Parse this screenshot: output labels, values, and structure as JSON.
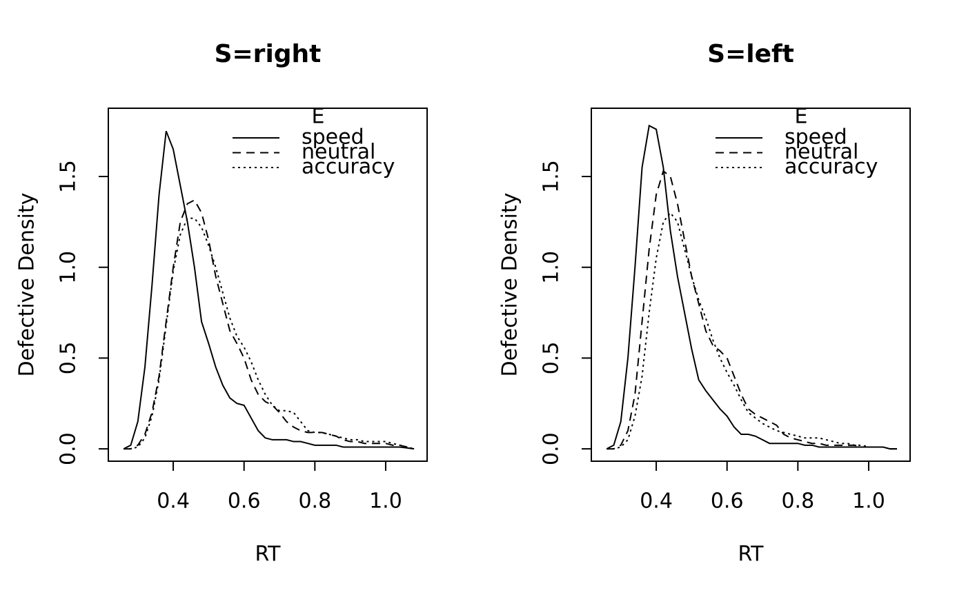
{
  "chart_data": [
    {
      "type": "line",
      "title": "S=right",
      "xlabel": "RT",
      "ylabel": "Defective Density",
      "legend_title": "E",
      "legend": "top-right",
      "x": [
        0.26,
        0.28,
        0.3,
        0.32,
        0.34,
        0.36,
        0.38,
        0.4,
        0.42,
        0.44,
        0.46,
        0.48,
        0.5,
        0.52,
        0.54,
        0.56,
        0.58,
        0.6,
        0.62,
        0.64,
        0.66,
        0.68,
        0.7,
        0.72,
        0.74,
        0.76,
        0.78,
        0.8,
        0.82,
        0.84,
        0.86,
        0.88,
        0.9,
        0.92,
        0.94,
        0.96,
        0.98,
        1.0,
        1.02,
        1.04,
        1.06,
        1.08
      ],
      "series": [
        {
          "name": "speed",
          "color": "#000000",
          "dash": "solid",
          "values": [
            0,
            0.02,
            0.15,
            0.45,
            0.9,
            1.4,
            1.75,
            1.65,
            1.45,
            1.25,
            1.0,
            0.7,
            0.58,
            0.45,
            0.35,
            0.28,
            0.25,
            0.24,
            0.17,
            0.1,
            0.06,
            0.05,
            0.05,
            0.05,
            0.04,
            0.04,
            0.03,
            0.02,
            0.02,
            0.02,
            0.02,
            0.01,
            0.01,
            0.01,
            0.01,
            0.01,
            0.01,
            0.01,
            0.01,
            0.01,
            0.005,
            0
          ]
        },
        {
          "name": "neutral",
          "color": "#000000",
          "dash": "dashed",
          "values": [
            0,
            0,
            0.02,
            0.08,
            0.2,
            0.4,
            0.7,
            1.0,
            1.25,
            1.35,
            1.37,
            1.3,
            1.15,
            0.95,
            0.8,
            0.65,
            0.58,
            0.5,
            0.38,
            0.3,
            0.26,
            0.24,
            0.2,
            0.15,
            0.12,
            0.1,
            0.09,
            0.09,
            0.09,
            0.08,
            0.07,
            0.05,
            0.04,
            0.04,
            0.03,
            0.03,
            0.03,
            0.03,
            0.02,
            0.02,
            0.01,
            0
          ]
        },
        {
          "name": "accuracy",
          "color": "#000000",
          "dash": "dotted",
          "values": [
            0,
            0,
            0.01,
            0.06,
            0.18,
            0.38,
            0.68,
            0.98,
            1.18,
            1.27,
            1.27,
            1.22,
            1.12,
            1.0,
            0.86,
            0.72,
            0.62,
            0.56,
            0.48,
            0.38,
            0.3,
            0.24,
            0.21,
            0.21,
            0.2,
            0.15,
            0.1,
            0.09,
            0.09,
            0.08,
            0.07,
            0.06,
            0.05,
            0.05,
            0.04,
            0.04,
            0.04,
            0.04,
            0.03,
            0.02,
            0.01,
            0
          ]
        }
      ],
      "xlim": [
        0.2167,
        1.117
      ],
      "ylim": [
        -0.068,
        1.876
      ],
      "xticks": [
        0.4,
        0.6,
        0.8,
        {
          "value": 1,
          "label": "1.0"
        }
      ],
      "yticks": [
        {
          "value": 0,
          "label": "0.0"
        },
        0.5,
        {
          "value": 1,
          "label": "1.0"
        },
        1.5
      ]
    },
    {
      "type": "line",
      "title": "S=left",
      "xlabel": "RT",
      "ylabel": "Defective Density",
      "legend_title": "E",
      "legend": "top-right",
      "x": [
        0.26,
        0.28,
        0.3,
        0.32,
        0.34,
        0.36,
        0.38,
        0.4,
        0.42,
        0.44,
        0.46,
        0.48,
        0.5,
        0.52,
        0.54,
        0.56,
        0.58,
        0.6,
        0.62,
        0.64,
        0.66,
        0.68,
        0.7,
        0.72,
        0.74,
        0.76,
        0.78,
        0.8,
        0.82,
        0.84,
        0.86,
        0.88,
        0.9,
        0.92,
        0.94,
        0.96,
        0.98,
        1.0,
        1.02,
        1.04,
        1.06,
        1.08
      ],
      "series": [
        {
          "name": "speed",
          "color": "#000000",
          "dash": "solid",
          "values": [
            0,
            0.02,
            0.15,
            0.5,
            1.0,
            1.55,
            1.78,
            1.76,
            1.55,
            1.2,
            0.95,
            0.75,
            0.55,
            0.38,
            0.32,
            0.27,
            0.22,
            0.18,
            0.12,
            0.08,
            0.08,
            0.07,
            0.05,
            0.03,
            0.03,
            0.03,
            0.03,
            0.03,
            0.02,
            0.02,
            0.01,
            0.01,
            0.01,
            0.01,
            0.01,
            0.01,
            0.01,
            0.01,
            0.01,
            0.01,
            0,
            0
          ]
        },
        {
          "name": "neutral",
          "color": "#000000",
          "dash": "dashed",
          "values": [
            0,
            0,
            0.02,
            0.1,
            0.3,
            0.7,
            1.1,
            1.4,
            1.53,
            1.5,
            1.35,
            1.15,
            0.95,
            0.8,
            0.65,
            0.57,
            0.54,
            0.5,
            0.4,
            0.3,
            0.22,
            0.19,
            0.17,
            0.15,
            0.13,
            0.08,
            0.06,
            0.05,
            0.04,
            0.03,
            0.03,
            0.02,
            0.02,
            0.02,
            0.02,
            0.02,
            0.01,
            0.01,
            0.01,
            0.01,
            0,
            0
          ]
        },
        {
          "name": "accuracy",
          "color": "#000000",
          "dash": "dotted",
          "values": [
            0,
            0,
            0.01,
            0.05,
            0.18,
            0.4,
            0.75,
            1.05,
            1.25,
            1.3,
            1.25,
            1.1,
            0.95,
            0.82,
            0.72,
            0.6,
            0.5,
            0.42,
            0.35,
            0.27,
            0.2,
            0.17,
            0.14,
            0.12,
            0.1,
            0.09,
            0.08,
            0.07,
            0.06,
            0.06,
            0.06,
            0.05,
            0.04,
            0.03,
            0.03,
            0.02,
            0.02,
            0.01,
            0.01,
            0.01,
            0,
            0
          ]
        }
      ],
      "xlim": [
        0.2167,
        1.117
      ],
      "ylim": [
        -0.068,
        1.876
      ],
      "xticks": [
        0.4,
        0.6,
        0.8,
        {
          "value": 1,
          "label": "1.0"
        }
      ],
      "yticks": [
        {
          "value": 0,
          "label": "0.0"
        },
        0.5,
        {
          "value": 1,
          "label": "1.0"
        },
        1.5
      ]
    }
  ]
}
